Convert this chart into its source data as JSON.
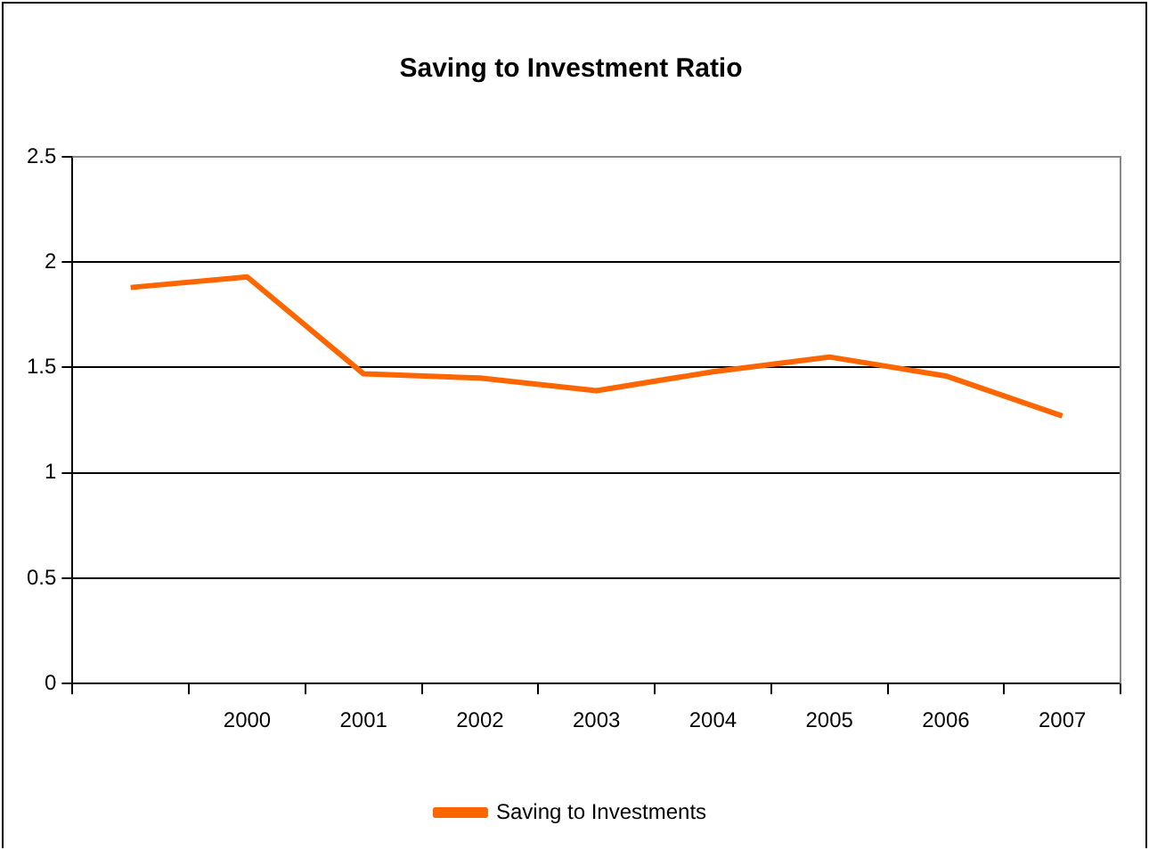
{
  "chart_data": {
    "type": "line",
    "title": "Saving to Investment Ratio",
    "categories": [
      null,
      "2000",
      "2001",
      "2002",
      "2003",
      "2004",
      "2005",
      "2006",
      "2007"
    ],
    "series": [
      {
        "name": "Saving to Investments",
        "color": "#ff6600",
        "values": [
          1.88,
          1.93,
          1.47,
          1.45,
          1.39,
          1.48,
          1.55,
          1.46,
          1.27
        ]
      }
    ],
    "ylim": [
      0,
      2.5
    ],
    "yticks": [
      0,
      0.5,
      1,
      1.5,
      2,
      2.5
    ],
    "grid": "y",
    "legend": "bottom",
    "marker": "none",
    "line_style": "solid"
  }
}
